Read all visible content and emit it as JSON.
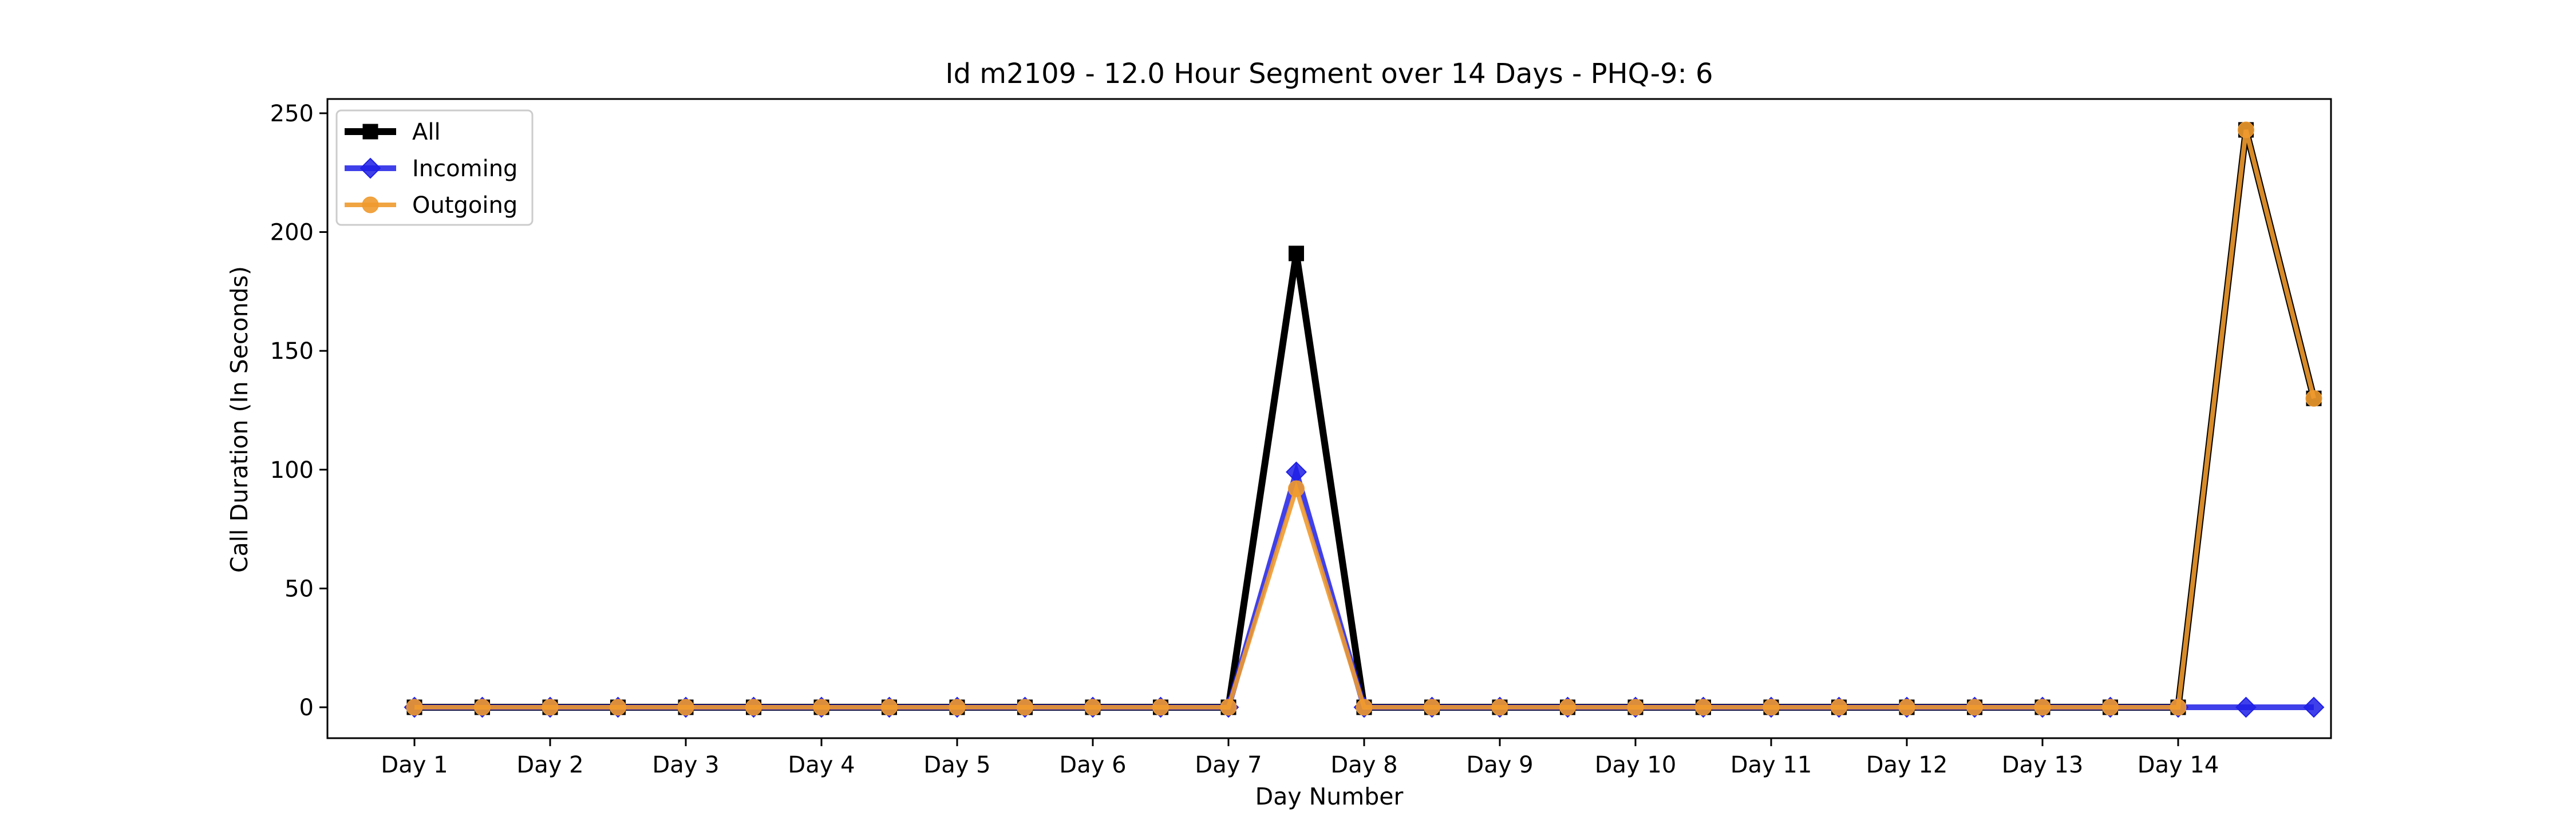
{
  "chart_data": {
    "type": "line",
    "title": "Id m2109 - 12.0 Hour Segment over 14 Days - PHQ-9: 6",
    "xlabel": "Day Number",
    "ylabel": "Call Duration (In Seconds)",
    "x_tick_labels": [
      "Day 1",
      "Day 2",
      "Day 3",
      "Day 4",
      "Day 5",
      "Day 6",
      "Day 7",
      "Day 8",
      "Day 9",
      "Day 10",
      "Day 11",
      "Day 12",
      "Day 13",
      "Day 14"
    ],
    "ylim": [
      -13,
      256
    ],
    "y_ticks": [
      0,
      50,
      100,
      150,
      200,
      250
    ],
    "x_points_per_day": 2,
    "grid": false,
    "legend_position": "top-left",
    "series": [
      {
        "name": "All",
        "color": "#000000",
        "marker": "square",
        "values": [
          0,
          0,
          0,
          0,
          0,
          0,
          0,
          0,
          0,
          0,
          0,
          0,
          0,
          191,
          0,
          0,
          0,
          0,
          0,
          0,
          0,
          0,
          0,
          0,
          0,
          0,
          0,
          243,
          130
        ]
      },
      {
        "name": "Incoming",
        "color": "#1f1fe6",
        "marker": "diamond",
        "values": [
          0,
          0,
          0,
          0,
          0,
          0,
          0,
          0,
          0,
          0,
          0,
          0,
          0,
          99,
          0,
          0,
          0,
          0,
          0,
          0,
          0,
          0,
          0,
          0,
          0,
          0,
          0,
          0,
          0
        ]
      },
      {
        "name": "Outgoing",
        "color": "#f09a2e",
        "marker": "circle",
        "values": [
          0,
          0,
          0,
          0,
          0,
          0,
          0,
          0,
          0,
          0,
          0,
          0,
          0,
          92,
          0,
          0,
          0,
          0,
          0,
          0,
          0,
          0,
          0,
          0,
          0,
          0,
          0,
          243,
          130
        ]
      }
    ]
  }
}
